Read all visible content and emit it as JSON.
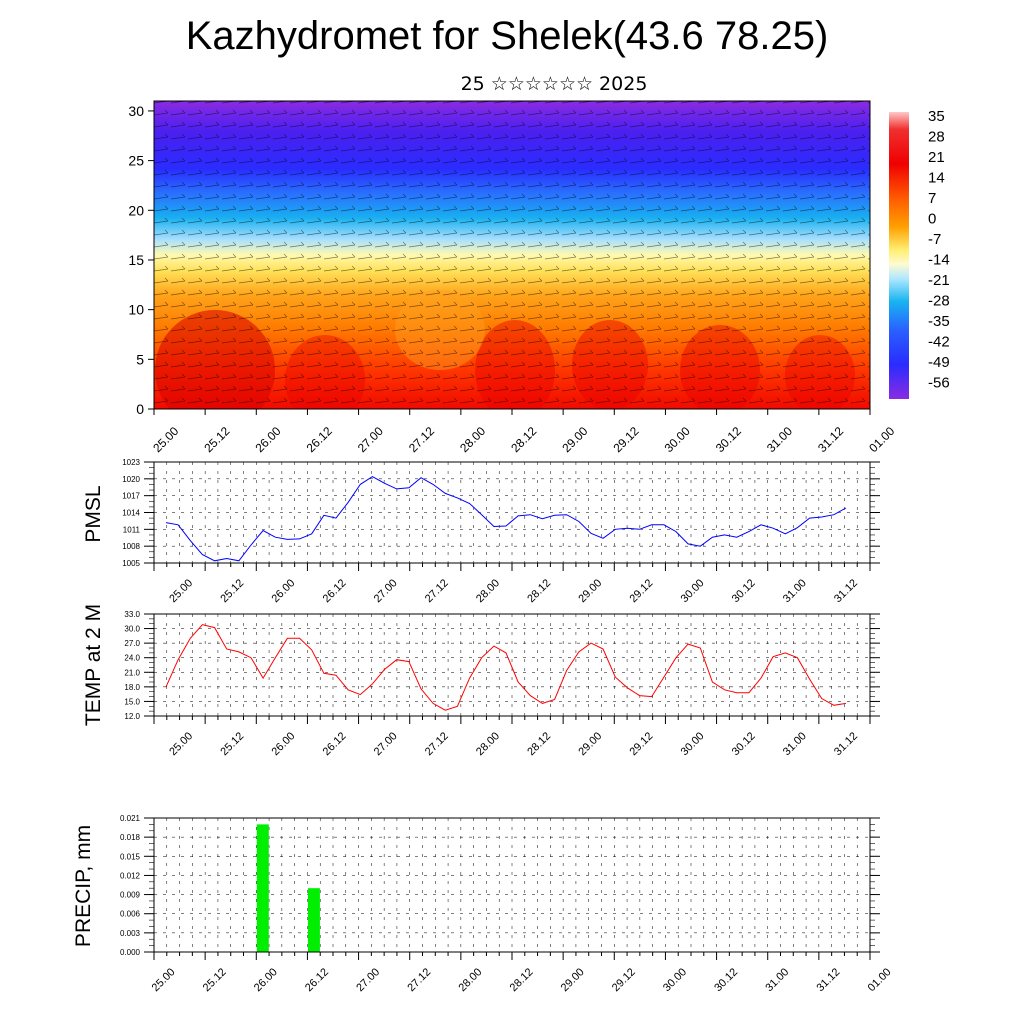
{
  "header": {
    "title": "Kazhydromet for Shelek(43.6 78.25)",
    "subtitle": "25 ☆☆☆☆☆☆ 2025"
  },
  "time_labels": [
    "25.00",
    "25.12",
    "26.00",
    "26.12",
    "27.00",
    "27.12",
    "28.00",
    "28.12",
    "29.00",
    "29.12",
    "30.00",
    "30.12",
    "31.00",
    "31.12",
    "01.00"
  ],
  "chart_data": [
    {
      "type": "heatmap",
      "title": "",
      "xlabel": "",
      "ylabel": "",
      "x_ticks": [
        "25.00",
        "25.12",
        "26.00",
        "26.12",
        "27.00",
        "27.12",
        "28.00",
        "28.12",
        "29.00",
        "29.12",
        "30.00",
        "30.12",
        "31.00",
        "31.12",
        "01.00"
      ],
      "y_ticks": [
        "0",
        "5",
        "10",
        "15",
        "20",
        "25",
        "30"
      ],
      "ylim": [
        0,
        31
      ],
      "colorbar_labels": [
        "35",
        "28",
        "21",
        "14",
        "7",
        "0",
        "-7",
        "-14",
        "-21",
        "-28",
        "-35",
        "-42",
        "-49",
        "-56"
      ],
      "colors": {
        "warm": "#ff1a00",
        "orange": "#ff9a00",
        "yellow": "#fff27a",
        "cyan": "#19b8f0",
        "blue": "#2a2cff",
        "purple": "#8a2be2"
      },
      "overlay": "wind vectors"
    },
    {
      "type": "line",
      "ylabel": "PMSL",
      "ylim": [
        1005,
        1023
      ],
      "y_ticks": [
        "1005",
        "1008",
        "1011",
        "1014",
        "1017",
        "1020",
        "1023"
      ],
      "x_ticks": [
        "25.00",
        "25.12",
        "26.00",
        "26.12",
        "27.00",
        "27.12",
        "28.00",
        "28.12",
        "29.00",
        "29.12",
        "30.00",
        "30.12",
        "31.00",
        "31.12",
        "01.00"
      ],
      "series": [
        {
          "color": "#0000ff",
          "x_hours": [
            0,
            3,
            6,
            9,
            12,
            15,
            18,
            21,
            24,
            27,
            30,
            33,
            36,
            39,
            42,
            45,
            48,
            51,
            54,
            57,
            60,
            63,
            66,
            69,
            72,
            75,
            78,
            81,
            84,
            87,
            90,
            93,
            96,
            99,
            102,
            105,
            108,
            111,
            114,
            117,
            120,
            123,
            126,
            129,
            132,
            135,
            138,
            141,
            144,
            147,
            150,
            153,
            156,
            159,
            162,
            165,
            168
          ],
          "values": [
            1012.2,
            1011.8,
            1009.0,
            1006.5,
            1005.4,
            1005.8,
            1005.4,
            1008.2,
            1010.8,
            1009.6,
            1009.2,
            1009.3,
            1010.2,
            1013.5,
            1013.0,
            1015.8,
            1019.0,
            1020.4,
            1019.2,
            1018.2,
            1018.4,
            1020.2,
            1019.0,
            1017.4,
            1016.6,
            1015.6,
            1013.6,
            1011.5,
            1011.6,
            1013.4,
            1013.6,
            1012.9,
            1013.5,
            1013.6,
            1012.4,
            1010.3,
            1009.4,
            1011.0,
            1011.2,
            1011.0,
            1011.8,
            1011.8,
            1010.6,
            1008.4,
            1008.0,
            1009.6,
            1010.0,
            1009.6,
            1010.6,
            1011.8,
            1011.2,
            1010.2,
            1011.3,
            1013.0,
            1013.2,
            1013.6,
            1014.8
          ]
        }
      ]
    },
    {
      "type": "line",
      "ylabel": "TEMP at 2 M",
      "ylim": [
        12,
        33
      ],
      "y_ticks": [
        "12.0",
        "15.0",
        "18.0",
        "21.0",
        "24.0",
        "27.0",
        "30.0",
        "33.0"
      ],
      "x_ticks": [
        "25.00",
        "25.12",
        "26.00",
        "26.12",
        "27.00",
        "27.12",
        "28.00",
        "28.12",
        "29.00",
        "29.12",
        "30.00",
        "30.12",
        "31.00",
        "31.12",
        "01.00"
      ],
      "series": [
        {
          "color": "#ff0000",
          "x_hours": [
            0,
            3,
            6,
            9,
            12,
            15,
            18,
            21,
            24,
            27,
            30,
            33,
            36,
            39,
            42,
            45,
            48,
            51,
            54,
            57,
            60,
            63,
            66,
            69,
            72,
            75,
            78,
            81,
            84,
            87,
            90,
            93,
            96,
            99,
            102,
            105,
            108,
            111,
            114,
            117,
            120,
            123,
            126,
            129,
            132,
            135,
            138,
            141,
            144,
            147,
            150,
            153,
            156,
            159,
            162,
            165,
            168
          ],
          "values": [
            18.0,
            23.6,
            28.0,
            30.8,
            30.2,
            25.8,
            25.2,
            24.0,
            19.8,
            24.0,
            28.0,
            28.0,
            25.6,
            20.8,
            20.4,
            17.4,
            16.4,
            18.6,
            21.6,
            23.6,
            23.2,
            17.6,
            14.6,
            13.2,
            14.0,
            19.8,
            24.0,
            26.4,
            25.0,
            19.0,
            16.2,
            14.6,
            15.4,
            21.4,
            25.2,
            27.0,
            25.8,
            20.0,
            17.8,
            16.2,
            16.0,
            20.0,
            24.0,
            26.8,
            26.0,
            19.0,
            17.4,
            16.8,
            16.8,
            19.8,
            24.2,
            25.0,
            24.0,
            19.6,
            15.6,
            14.2,
            14.6
          ]
        }
      ]
    },
    {
      "type": "bar",
      "ylabel": "PRECIP, mm",
      "ylim": [
        0,
        0.021
      ],
      "y_ticks": [
        "0.000",
        "0.003",
        "0.006",
        "0.009",
        "0.012",
        "0.015",
        "0.018",
        "0.021"
      ],
      "x_ticks": [
        "25.00",
        "25.12",
        "26.00",
        "26.12",
        "27.00",
        "27.12",
        "28.00",
        "28.12",
        "29.00",
        "29.12",
        "30.00",
        "30.12",
        "31.00",
        "31.12",
        "01.00"
      ],
      "bars": [
        {
          "x_hour": 21,
          "value": 0.02
        },
        {
          "x_hour": 33,
          "value": 0.01
        }
      ],
      "bar_color": "#00ee00"
    }
  ]
}
